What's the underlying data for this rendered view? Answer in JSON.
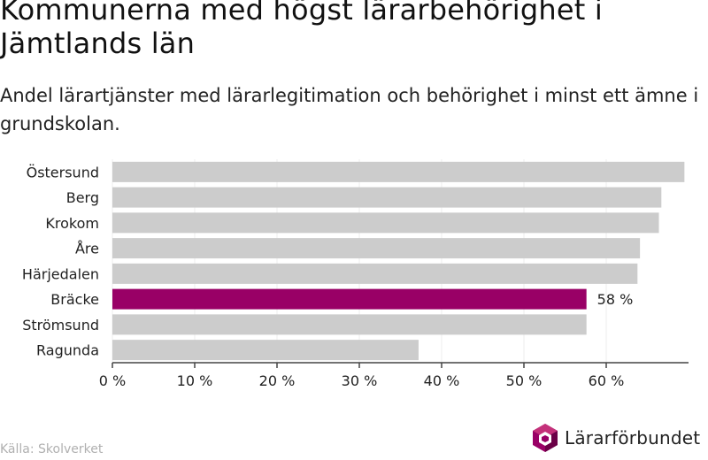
{
  "title": "Kommunerna med högst lärarbehörighet i Jämtlands län",
  "subtitle": "Andel lärartjänster med lärarlegitimation och behörighet i minst ett ämne i grundskolan.",
  "source": "Källa: Skolverket",
  "logo": {
    "text": "Lärarförbundet",
    "icon": "lararforbundet-logo-icon"
  },
  "colors": {
    "bar": "#cccccc",
    "highlight": "#990066",
    "axis": "#444444",
    "text": "#222222"
  },
  "chart_data": {
    "type": "bar",
    "orientation": "horizontal",
    "categories": [
      "Östersund",
      "Berg",
      "Krokom",
      "Åre",
      "Härjedalen",
      "Bräcke",
      "Strömsund",
      "Ragunda"
    ],
    "values": [
      69.5,
      66.7,
      66.4,
      64.1,
      63.8,
      57.6,
      57.6,
      37.2
    ],
    "highlight_index": 5,
    "data_labels": [
      {
        "index": 5,
        "text": "58 %"
      }
    ],
    "xlim": [
      0,
      70
    ],
    "xticks": [
      0,
      10,
      20,
      30,
      40,
      50,
      60
    ],
    "tick_labels": [
      "0 %",
      "10 %",
      "20 %",
      "30 %",
      "40 %",
      "50 %",
      "60 %"
    ],
    "grid": true,
    "xlabel": "",
    "ylabel": ""
  }
}
